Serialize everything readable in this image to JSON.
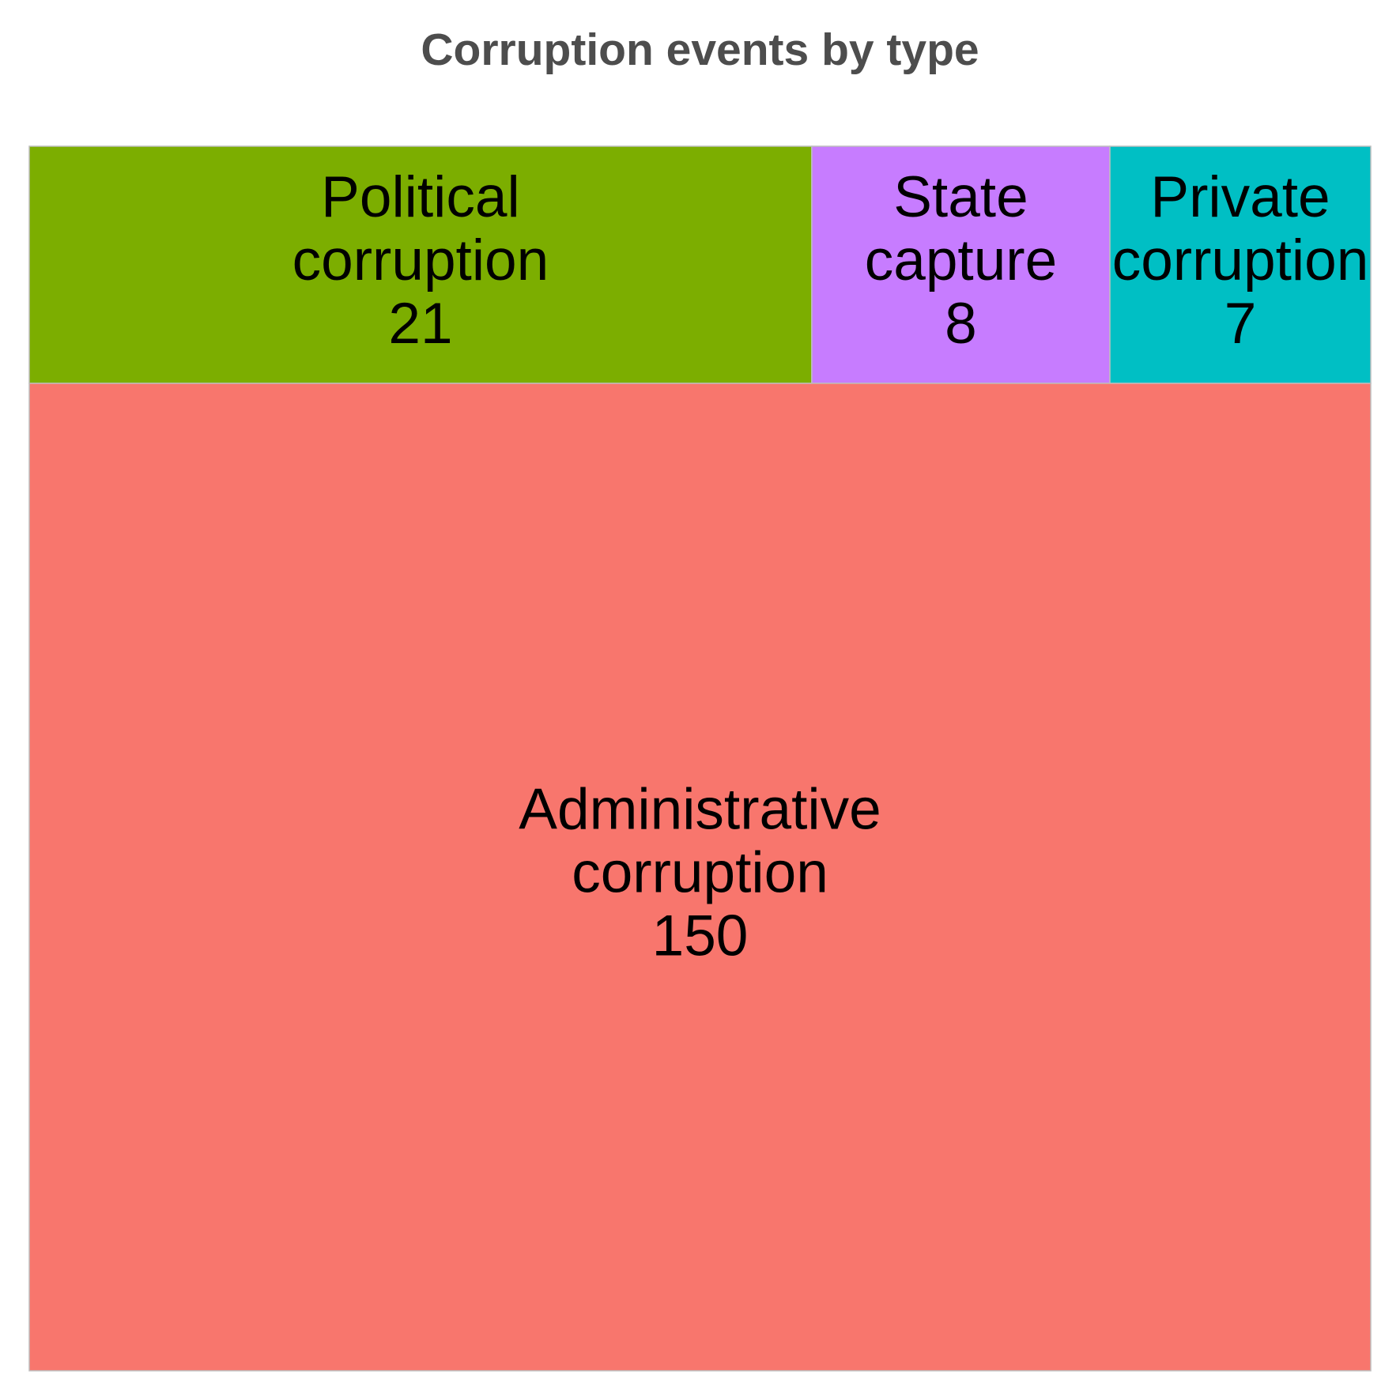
{
  "chart_data": {
    "type": "treemap",
    "title": "Corruption events by type",
    "items": [
      {
        "label_lines": [
          "Administrative",
          "corruption"
        ],
        "value": 150,
        "color": "#F8766D"
      },
      {
        "label_lines": [
          "Political",
          "corruption"
        ],
        "value": 21,
        "color": "#7CAE00"
      },
      {
        "label_lines": [
          "State",
          "capture"
        ],
        "value": 8,
        "color": "#C77CFF"
      },
      {
        "label_lines": [
          "Private",
          "corruption"
        ],
        "value": 7,
        "color": "#00BFC4"
      }
    ],
    "border_color": "#BEBEBE"
  }
}
